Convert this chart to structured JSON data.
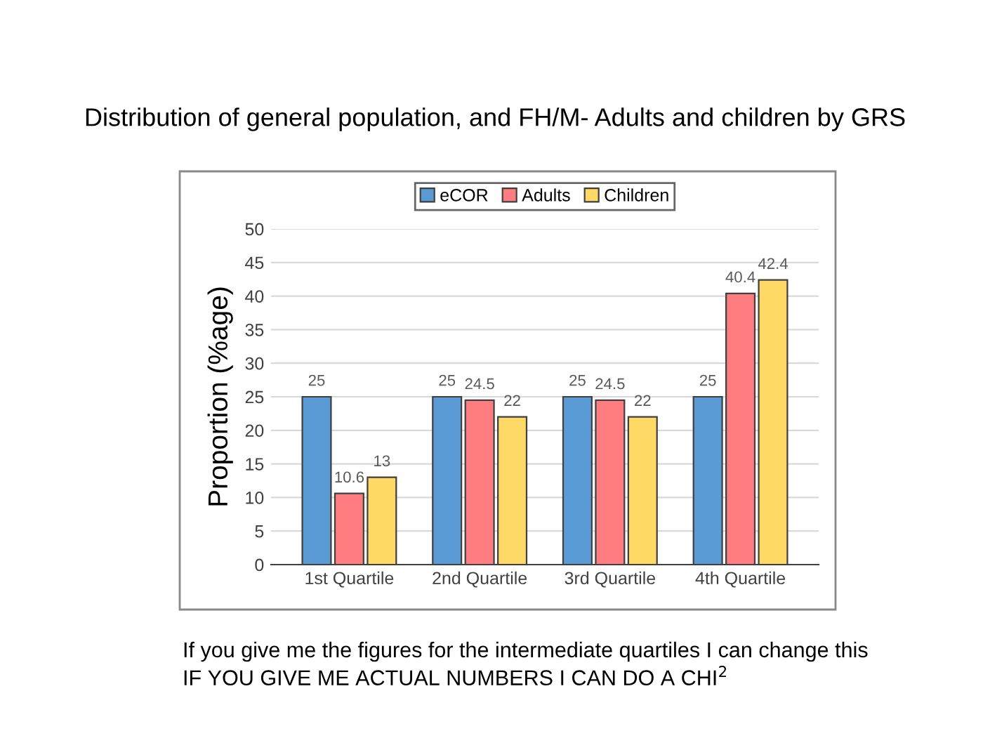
{
  "chart_data": {
    "type": "bar",
    "title": "Distribution of general population, and FH/M- Adults and children by GRS",
    "ylabel": "Proportion (%age)",
    "categories": [
      "1st Quartile",
      "2nd Quartile",
      "3rd Quartile",
      "4th Quartile"
    ],
    "series": [
      {
        "name": "eCOR",
        "color": "#5b9bd5",
        "values": [
          25,
          25,
          25,
          25
        ]
      },
      {
        "name": "Adults",
        "color": "#ff7c80",
        "values": [
          10.6,
          24.5,
          24.5,
          40.4
        ]
      },
      {
        "name": "Children",
        "color": "#ffd966",
        "values": [
          13,
          22,
          22,
          42.4
        ]
      }
    ],
    "ylim": [
      0,
      50
    ],
    "yticks": [
      0,
      5,
      10,
      15,
      20,
      25,
      30,
      35,
      40,
      45,
      50
    ],
    "grid": "y",
    "legend": "top",
    "data_labels": true,
    "annotations": [
      "If you give me the figures for the intermediate quartiles I can change this",
      "IF YOU GIVE ME ACTUAL NUMBERS I CAN DO A CHI$^{2}$"
    ]
  }
}
